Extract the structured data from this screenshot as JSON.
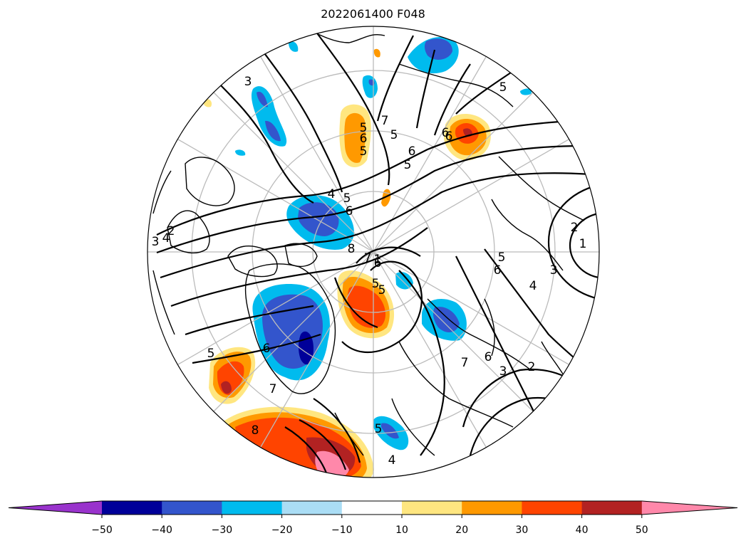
{
  "title": "2022061400 F048",
  "colorbar": {
    "extend": "both",
    "ticks": [
      "−50",
      "−40",
      "−30",
      "−20",
      "−10",
      "10",
      "20",
      "30",
      "40",
      "50"
    ],
    "bins": [
      {
        "range": "< -50",
        "color": "#9933cc"
      },
      {
        "range": "-50 to -40",
        "color": "#000099"
      },
      {
        "range": "-40 to -30",
        "color": "#3355cc"
      },
      {
        "range": "-30 to -20",
        "color": "#00bbee"
      },
      {
        "range": "-20 to -10",
        "color": "#aaddf5"
      },
      {
        "range": "-10 to 10",
        "color": "#ffffff"
      },
      {
        "range": "10 to 20",
        "color": "#ffe680"
      },
      {
        "range": "20 to 30",
        "color": "#ff9900"
      },
      {
        "range": "30 to 40",
        "color": "#ff4400"
      },
      {
        "range": "40 to 50",
        "color": "#b22222"
      },
      {
        "range": "> 50",
        "color": "#ff88aa"
      }
    ]
  },
  "map": {
    "projection": "north-polar-stereographic",
    "contour_color": "#000000",
    "contour_labels": [
      "3",
      "5",
      "7",
      "6",
      "5",
      "6",
      "5",
      "5",
      "6",
      "4",
      "5",
      "6",
      "8",
      "7",
      "6",
      "5",
      "5",
      "4",
      "2",
      "1",
      "3",
      "4",
      "5",
      "6",
      "7",
      "6",
      "3",
      "2",
      "5",
      "6",
      "7",
      "8",
      "5",
      "4",
      "6",
      "5",
      "1",
      "2",
      "3"
    ]
  }
}
